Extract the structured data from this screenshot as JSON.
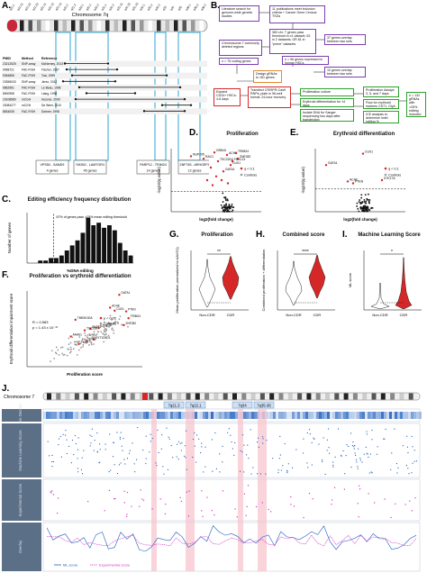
{
  "panels": {
    "A": {
      "label": "A.",
      "chromosome_label": "Chromosome 7q",
      "bands": [
        "q11.1",
        "q11.21",
        "q11.22",
        "q11.23",
        "q21.11",
        "q21.12",
        "q21.13",
        "q21.2",
        "q21.3",
        "q22.1",
        "q22.2",
        "q22.3",
        "q31.1",
        "q31.2",
        "q31.31",
        "q31.32",
        "q31.33",
        "q32.1",
        "q32.2",
        "q32.3",
        "q33",
        "q34",
        "q35",
        "q36.1",
        "q36.2",
        "q36.3"
      ],
      "table_headers": [
        "PMID",
        "Method",
        "Reference"
      ],
      "table_rows": [
        {
          "pmid": "23212525",
          "method": "SNP-array",
          "ref": "McNerney, 2013"
        },
        {
          "pmid": "9058721",
          "method": "FAC-FISH",
          "ref": "Fischer, 1997"
        },
        {
          "pmid": "9354855",
          "method": "FAC-FISH",
          "ref": "Tosi, 1999"
        },
        {
          "pmid": "23355033",
          "method": "SNP-array",
          "ref": "Jerez, 2012"
        },
        {
          "pmid": "9862961",
          "method": "FAC-FISH",
          "ref": "Le Beau, 1996"
        },
        {
          "pmid": "8900998",
          "method": "FAC-FISH",
          "ref": "Liang, 1998"
        },
        {
          "pmid": "19108580",
          "method": "mCGH",
          "ref": "Hosono, 2009"
        },
        {
          "pmid": "20084277",
          "method": "mCGH",
          "ref": "De Weer, 2010"
        },
        {
          "pmid": "8834005",
          "method": "FAC-FISH",
          "ref": "Dohner, 1998"
        }
      ],
      "regions": [
        {
          "range": "VPS50 - SAMD9",
          "genes": "4 genes"
        },
        {
          "range": "SH2B2 - LAMTOR4",
          "genes": "45 genes"
        },
        {
          "range": "PARP12 - TRIM24",
          "genes": "14 genes"
        },
        {
          "range": "ZNF783 - ARHGEF5",
          "genes": "12 genes"
        }
      ]
    },
    "B": {
      "label": "B.",
      "boxes": {
        "lit": "Literature search for genome-wide genetic studies",
        "pubs": "11 publications meet inclusion criteria + Cancer Gene Census TSGs",
        "chr7": "Chromosome 7 commonly deleted regions",
        "n383": "383 chr. 7 genes pass threshold in ≥1 dataset; 63 in 2 datasets; OR 81 in \"prime\" datasets",
        "n37": "37 genes overlap between two sets",
        "n96": "n = 96 genes expressed in human HSCs",
        "n75": "n = 75 coding genes",
        "design": "Design gRNAs to 161 genes",
        "n10": "10 genes overlap between two sets",
        "expand": "Expand CD34+ HSCs: 4-6 days",
        "transfect": "Transfect CRISPR-Cas9 RNPs; plate in 96-well format; 24-hour recovery",
        "prolifcult": "Proliferation culture",
        "erythdiff": "Erythroid differentiation for 14 days",
        "isolate": "Isolate DNA for Sanger sequencing two days after transfection",
        "prolifassay": "Proliferation Assays 3, 5, and 7 days",
        "flow": "Flow for erythroid markers CD71, GlyA",
        "ice": "ICE analysis to determine indel editing %",
        "n132": "n = 132 gRNAs with >25% editing included in analysis"
      }
    },
    "C": {
      "label": "C.",
      "title": "Editing efficiency frequency distribution",
      "xlabel": "%DNA editing",
      "ylabel": "Number of genes",
      "annotation": "87% of genes pass >25% mean editing threshold"
    },
    "D": {
      "label": "D.",
      "title": "Proliferation",
      "xlabel": "log2(fold change)",
      "ylabel": "-log10(q value)",
      "legend": [
        "q < 0.1",
        "Controls"
      ],
      "gene_labels": [
        "GRB10",
        "NUP205",
        "RAC1",
        "TSC22D4",
        "ACHE",
        "TRIM24",
        "ZNF282",
        "FBXL13",
        "CUX1",
        "GATA1"
      ]
    },
    "E": {
      "label": "E.",
      "title": "Erythroid differentiation",
      "xlabel": "log2(fold change)",
      "ylabel": "-log10(q value)",
      "legend": [
        "q < 0.1",
        "Controls"
      ],
      "gene_labels": [
        "CUX1",
        "GATA1",
        "ACHE",
        "PTEN",
        "STK17A"
      ]
    },
    "F": {
      "label": "F.",
      "title": "Proliferation vs erythroid differentiation",
      "xlabel": "Proliferation score",
      "ylabel": "Erythroid differentiation impairment score",
      "stats": [
        "R = 0.583",
        "p = 1.43 x 10⁻¹³"
      ],
      "legend": [
        "p < 0.05",
        "Controls"
      ],
      "gene_labels": [
        "GATA1",
        "ACHE",
        "CUX1",
        "PTEN",
        "TMEM130A",
        "TRIM24",
        "ZNF282",
        "PHTF2",
        "TSC22D4",
        "EZH2",
        "AAAS1",
        "SYT1D9D1",
        "ZNF3",
        "PMS2"
      ]
    },
    "G": {
      "label": "G.",
      "title": "Proliferation",
      "ylabel": "Mean proliferation (normalized to AAVS1)",
      "categories": [
        "Non-CDR",
        "CDR"
      ],
      "sig": "**"
    },
    "H": {
      "label": "H.",
      "title": "Combined score",
      "ylabel": "Combined proliferation + differentiation",
      "categories": [
        "Non-CDR",
        "CDR"
      ],
      "sig": "****"
    },
    "I": {
      "label": "I.",
      "title": "Machine Learning Score",
      "ylabel": "ML score",
      "categories": [
        "Non-CDR",
        "CDR"
      ],
      "sig": "*"
    },
    "J": {
      "label": "J.",
      "chromosome_label": "Chromosome 7",
      "regions": [
        "7q21.3",
        "7q22.1",
        "7q34",
        "7q35-36"
      ],
      "tracks": [
        "Gene Density",
        "Machine Learning Score",
        "Experimental Score",
        "Overlay"
      ],
      "legend": [
        "ML score",
        "Experimental score"
      ]
    }
  },
  "colors": {
    "red": "#d62728",
    "gray": "#9a9a9a",
    "blue": "#1f5fbf",
    "magenta": "#d633c9",
    "highlight": "#f7c6cf",
    "cyan": "#4fb3d9",
    "track_bg": "#5b6f86"
  }
}
